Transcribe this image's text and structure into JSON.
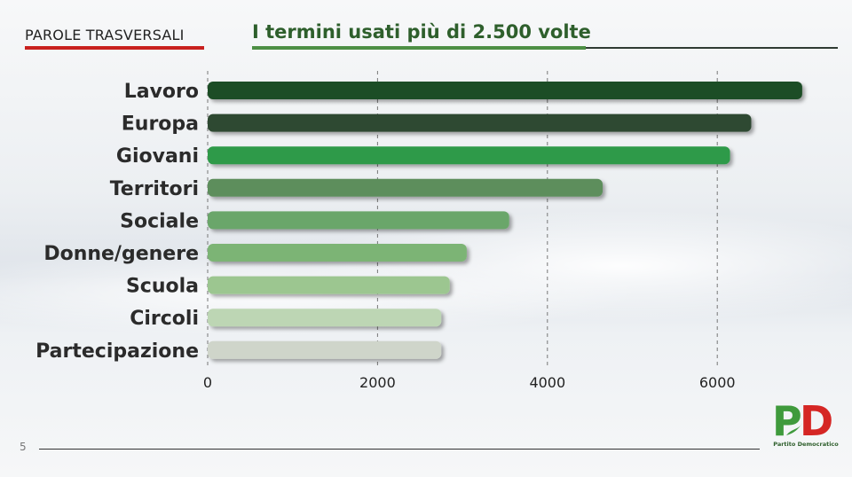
{
  "header": {
    "section_title": "PAROLE TRASVERSALI",
    "chart_title": "I termini usati più di 2.500 volte"
  },
  "footer": {
    "page_number": "5",
    "logo_text": "Partito Democratico",
    "logo_letters": "PD"
  },
  "colors": {
    "accent_red": "#c8201e",
    "accent_green": "#4d8f45"
  },
  "chart_data": {
    "type": "bar",
    "orientation": "horizontal",
    "title": "I termini usati più di 2.500 volte",
    "xlabel": "",
    "ylabel": "",
    "categories": [
      "Lavoro",
      "Europa",
      "Giovani",
      "Territori",
      "Sociale",
      "Donne/genere",
      "Scuola",
      "Circoli",
      "Partecipazione"
    ],
    "values": [
      7000,
      6400,
      6150,
      4650,
      3550,
      3050,
      2850,
      2750,
      2750
    ],
    "bar_colors": [
      "#1f4d27",
      "#2f4a33",
      "#2f9a48",
      "#5d8e5c",
      "#6aa66a",
      "#7cb474",
      "#9cc690",
      "#bdd6b4",
      "#cfd5ca"
    ],
    "xlim": [
      0,
      7100
    ],
    "xticks": [
      0,
      2000,
      4000,
      6000
    ],
    "xtick_labels": [
      "0",
      "2000",
      "4000",
      "6000"
    ],
    "grid": "vertical-dashed",
    "legend": "none"
  }
}
